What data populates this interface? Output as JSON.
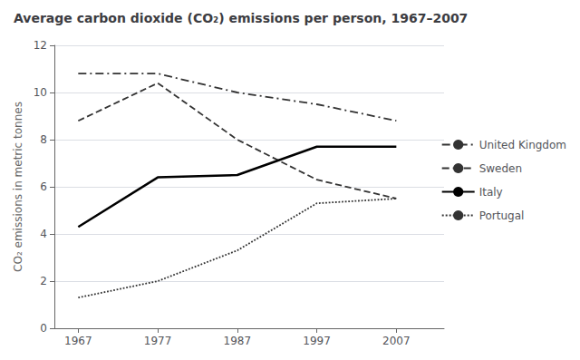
{
  "chart_data": {
    "type": "line",
    "title": "Average carbon dioxide (CO₂) emissions per person, 1967–2007",
    "y_label": "CO₂ emissions in metric tonnes",
    "x": [
      1967,
      1977,
      1987,
      1997,
      2007
    ],
    "series": [
      {
        "name": "United Kingdom",
        "color": "#333333",
        "line_style": "dashdot",
        "values": [
          10.8,
          10.8,
          10.0,
          9.5,
          8.8
        ]
      },
      {
        "name": "Sweden",
        "color": "#333333",
        "line_style": "dashed",
        "values": [
          8.8,
          10.4,
          8.0,
          6.3,
          5.5
        ]
      },
      {
        "name": "Italy",
        "color": "#000000",
        "line_style": "solid",
        "values": [
          4.3,
          6.4,
          6.5,
          7.7,
          7.7
        ]
      },
      {
        "name": "Portugal",
        "color": "#333333",
        "line_style": "dotted",
        "values": [
          1.3,
          2.0,
          3.3,
          5.3,
          5.5
        ]
      }
    ],
    "xlim": [
      1964,
      2013
    ],
    "xticks": [
      1967,
      1977,
      1987,
      1997,
      2007
    ],
    "ylim": [
      0,
      12
    ],
    "yticks": [
      0,
      2,
      4,
      6,
      8,
      10,
      12
    ],
    "grid": true,
    "legend": "right"
  }
}
